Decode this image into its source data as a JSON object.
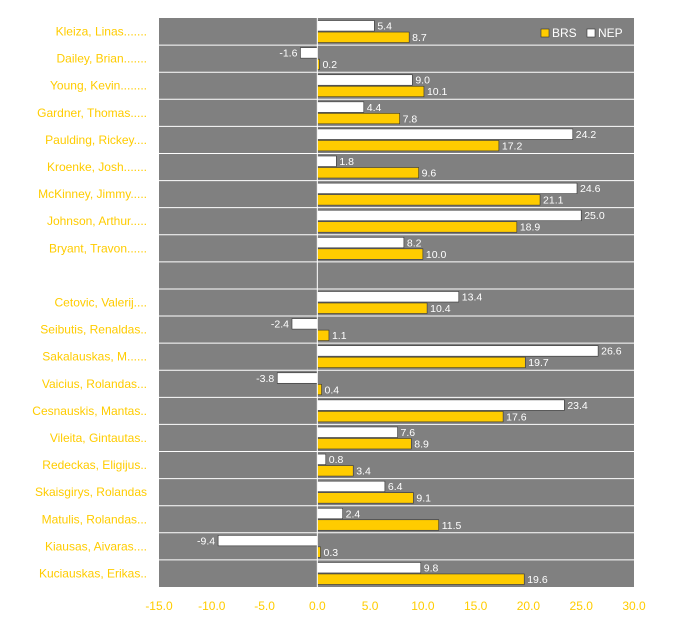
{
  "chart_data": {
    "type": "bar",
    "orientation": "horizontal",
    "categories": [
      "Kleiza, Linas.......",
      "Dailey, Brian.......",
      "Young, Kevin........",
      "Gardner, Thomas.....",
      "Paulding, Rickey....",
      "Kroenke, Josh.......",
      "McKinney, Jimmy.....",
      "Johnson, Arthur.....",
      "Bryant, Travon......",
      "",
      "Cetovic, Valerij....",
      "Seibutis, Renaldas..",
      "Sakalauskas, M......",
      "Vaicius, Rolandas...",
      "Cesnauskis, Mantas..",
      "Vileita, Gintautas..",
      "Redeckas, Eligijus..",
      "Skaisgirys, Rolandas",
      "Matulis, Rolandas...",
      "Kiausas, Aivaras....",
      "Kuciauskas, Erikas.."
    ],
    "series": [
      {
        "name": "NEP",
        "color": "#ffffff",
        "values": [
          5.4,
          -1.6,
          9.0,
          4.4,
          24.2,
          1.8,
          24.6,
          25.0,
          8.2,
          null,
          13.4,
          -2.4,
          26.6,
          -3.8,
          23.4,
          7.6,
          0.8,
          6.4,
          2.4,
          -9.4,
          9.8
        ],
        "labels": [
          "5.4",
          "-1.6",
          "9.0",
          "4.4",
          "24.2",
          "1.8",
          "24.6",
          "25.0",
          "8.2",
          "",
          "13.4",
          "-2.4",
          "26.6",
          "-3.8",
          "23.4",
          "7.6",
          "0.8",
          "6.4",
          "2.4",
          "-9.4",
          "9.8"
        ]
      },
      {
        "name": "BRS",
        "color": "#ffcc00",
        "values": [
          8.7,
          0.2,
          10.1,
          7.8,
          17.2,
          9.6,
          21.1,
          18.9,
          10.0,
          null,
          10.4,
          1.1,
          19.7,
          0.4,
          17.6,
          8.9,
          3.4,
          9.1,
          11.5,
          0.3,
          19.6
        ],
        "labels": [
          "8.7",
          "0.2",
          "10.1",
          "7.8",
          "17.2",
          "9.6",
          "21.1",
          "18.9",
          "10.0",
          "",
          "10.4",
          "1.1",
          "19.7",
          "0.4",
          "17.6",
          "8.9",
          "3.4",
          "9.1",
          "11.5",
          "0.3",
          "19.6"
        ]
      }
    ],
    "xlim": [
      -15,
      30
    ],
    "xticks": [
      "-15.0",
      "-10.0",
      "-5.0",
      "0.0",
      "5.0",
      "10.0",
      "15.0",
      "20.0",
      "25.0",
      "30.0"
    ],
    "legend": {
      "placement": "top-right",
      "entries": [
        "BRS",
        "NEP"
      ]
    },
    "grid": false,
    "colors": {
      "plot_background": "#808080",
      "row_separator": "#ffffff",
      "zero_line": "#ffffff",
      "label_text": "#ffcc00",
      "value_text": "#ffffff",
      "bar_outline": "#333333"
    }
  }
}
